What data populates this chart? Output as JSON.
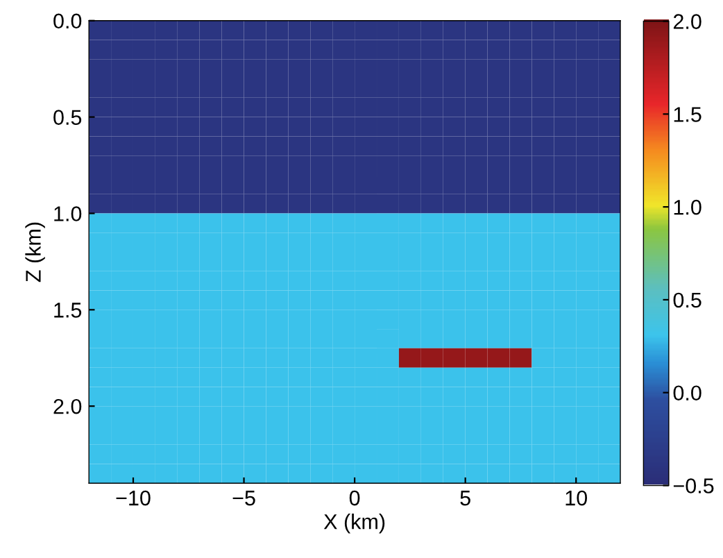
{
  "chart_data": {
    "type": "heatmap",
    "xlabel": "X (km)",
    "ylabel": "Z (km)",
    "xlim": [
      -12,
      12
    ],
    "ylim": [
      2.4,
      0
    ],
    "xticks": [
      {
        "value": -10,
        "label": "−10"
      },
      {
        "value": -5,
        "label": "−5"
      },
      {
        "value": 0,
        "label": "0"
      },
      {
        "value": 5,
        "label": "5"
      },
      {
        "value": 10,
        "label": "10"
      }
    ],
    "yticks": [
      {
        "value": 0,
        "label": "0.0"
      },
      {
        "value": 0.5,
        "label": "0.5"
      },
      {
        "value": 1.0,
        "label": "1.0"
      },
      {
        "value": 1.5,
        "label": "1.5"
      },
      {
        "value": 2.0,
        "label": "2.0"
      }
    ],
    "clim": [
      -0.5,
      2.0
    ],
    "cticks": [
      {
        "value": -0.5,
        "label": "−0.5"
      },
      {
        "value": 0,
        "label": "0.0"
      },
      {
        "value": 0.5,
        "label": "0.5"
      },
      {
        "value": 1.0,
        "label": "1.0"
      },
      {
        "value": 1.5,
        "label": "1.5"
      },
      {
        "value": 2.0,
        "label": "2.0"
      }
    ],
    "cells": [
      [
        -0.4,
        -0.4,
        -0.4,
        -0.4,
        -0.4,
        -0.4,
        -0.4,
        -0.4,
        -0.4,
        -0.4,
        -0.4,
        -0.4,
        -0.4,
        -0.4,
        -0.4,
        -0.4,
        -0.4,
        -0.4,
        -0.4,
        -0.4,
        -0.4,
        -0.4,
        -0.4,
        -0.4
      ],
      [
        -0.4,
        -0.4,
        -0.4,
        -0.4,
        -0.4,
        -0.4,
        -0.4,
        -0.4,
        -0.4,
        -0.4,
        -0.4,
        -0.4,
        -0.4,
        -0.4,
        -0.4,
        -0.4,
        -0.4,
        -0.4,
        -0.4,
        -0.4,
        -0.4,
        -0.4,
        -0.4,
        -0.4
      ],
      [
        -0.4,
        -0.4,
        -0.4,
        -0.4,
        -0.4,
        -0.4,
        -0.4,
        -0.4,
        -0.4,
        -0.4,
        -0.4,
        -0.4,
        -0.4,
        -0.4,
        -0.4,
        -0.4,
        -0.4,
        -0.4,
        -0.4,
        -0.4,
        -0.4,
        -0.4,
        -0.4,
        -0.4
      ],
      [
        -0.4,
        -0.4,
        -0.4,
        -0.4,
        -0.4,
        -0.4,
        -0.4,
        -0.4,
        -0.4,
        -0.4,
        -0.4,
        -0.4,
        -0.4,
        -0.4,
        -0.4,
        -0.4,
        -0.4,
        -0.4,
        -0.4,
        -0.4,
        -0.4,
        -0.4,
        -0.4,
        -0.4
      ],
      [
        -0.4,
        -0.4,
        -0.4,
        -0.4,
        -0.4,
        -0.4,
        -0.4,
        -0.4,
        -0.4,
        -0.4,
        -0.4,
        -0.4,
        -0.4,
        -0.4,
        -0.4,
        -0.4,
        -0.4,
        -0.4,
        -0.4,
        -0.4,
        -0.4,
        -0.4,
        -0.4,
        -0.4
      ],
      [
        -0.4,
        -0.4,
        -0.4,
        -0.4,
        -0.4,
        -0.4,
        -0.4,
        -0.4,
        -0.4,
        -0.4,
        -0.4,
        -0.4,
        -0.4,
        -0.4,
        -0.4,
        -0.4,
        -0.4,
        -0.4,
        -0.4,
        -0.4,
        -0.4,
        -0.4,
        -0.4,
        -0.4
      ],
      [
        -0.4,
        -0.4,
        -0.4,
        -0.4,
        -0.4,
        -0.4,
        -0.4,
        -0.4,
        -0.4,
        -0.4,
        -0.4,
        -0.4,
        -0.4,
        -0.4,
        -0.4,
        -0.4,
        -0.4,
        -0.4,
        -0.4,
        -0.4,
        -0.4,
        -0.4,
        -0.4,
        -0.4
      ],
      [
        -0.4,
        -0.4,
        -0.4,
        -0.4,
        -0.4,
        -0.4,
        -0.4,
        -0.4,
        -0.4,
        -0.4,
        -0.4,
        -0.4,
        -0.4,
        -0.4,
        -0.4,
        -0.4,
        -0.4,
        -0.4,
        -0.4,
        -0.4,
        -0.4,
        -0.4,
        -0.4,
        -0.4
      ],
      [
        -0.4,
        -0.4,
        -0.4,
        -0.4,
        -0.4,
        -0.4,
        -0.4,
        -0.4,
        -0.4,
        -0.4,
        -0.4,
        -0.4,
        -0.4,
        -0.4,
        -0.4,
        -0.4,
        -0.4,
        -0.4,
        -0.4,
        -0.4,
        -0.4,
        -0.4,
        -0.4,
        -0.4
      ],
      [
        -0.4,
        -0.4,
        -0.4,
        -0.4,
        -0.4,
        -0.4,
        -0.4,
        -0.4,
        -0.4,
        -0.4,
        -0.4,
        -0.4,
        -0.4,
        -0.4,
        -0.4,
        -0.4,
        -0.4,
        -0.4,
        -0.4,
        -0.4,
        -0.4,
        -0.4,
        -0.4,
        -0.4
      ],
      [
        0.3,
        0.3,
        0.3,
        0.3,
        0.3,
        0.3,
        0.3,
        0.3,
        0.3,
        0.3,
        0.3,
        0.3,
        0.3,
        0.3,
        0.3,
        0.3,
        0.3,
        0.3,
        0.3,
        0.3,
        0.3,
        0.3,
        0.3,
        0.3
      ],
      [
        0.3,
        0.3,
        0.3,
        0.3,
        0.3,
        0.3,
        0.3,
        0.3,
        0.3,
        0.3,
        0.3,
        0.3,
        0.3,
        0.3,
        0.3,
        0.3,
        0.3,
        0.3,
        0.3,
        0.3,
        0.3,
        0.3,
        0.3,
        0.3
      ],
      [
        0.3,
        0.3,
        0.3,
        0.3,
        0.3,
        0.3,
        0.3,
        0.3,
        0.3,
        0.3,
        0.3,
        0.3,
        0.3,
        0.3,
        0.3,
        0.3,
        0.3,
        0.3,
        0.3,
        0.3,
        0.3,
        0.3,
        0.3,
        0.3
      ],
      [
        0.3,
        0.3,
        0.3,
        0.3,
        0.3,
        0.3,
        0.3,
        0.3,
        0.3,
        0.3,
        0.3,
        0.3,
        0.3,
        0.3,
        0.3,
        0.3,
        0.3,
        0.3,
        0.3,
        0.3,
        0.3,
        0.3,
        0.3,
        0.3
      ],
      [
        0.3,
        0.3,
        0.3,
        0.3,
        0.3,
        0.3,
        0.3,
        0.3,
        0.3,
        0.3,
        0.3,
        0.3,
        0.3,
        0.3,
        0.3,
        0.3,
        0.3,
        0.3,
        0.3,
        0.3,
        0.3,
        0.3,
        0.3,
        0.3
      ],
      [
        0.3,
        0.3,
        0.3,
        0.3,
        0.3,
        0.3,
        0.3,
        0.3,
        0.3,
        0.3,
        0.3,
        0.3,
        0.3,
        0.3,
        0.3,
        0.3,
        0.3,
        0.3,
        0.3,
        0.3,
        0.3,
        0.3,
        0.3,
        0.3
      ],
      [
        0.3,
        0.3,
        0.3,
        0.3,
        0.3,
        0.3,
        0.3,
        0.3,
        0.3,
        0.3,
        0.3,
        0.3,
        0.3,
        0.3,
        0.3,
        0.3,
        0.3,
        0.3,
        0.3,
        0.3,
        0.3,
        0.3,
        0.3,
        0.3
      ],
      [
        0.3,
        0.3,
        0.3,
        0.3,
        0.3,
        0.3,
        0.3,
        0.3,
        0.3,
        0.3,
        0.3,
        0.3,
        0.3,
        0.3,
        1.9,
        1.9,
        1.9,
        1.9,
        1.9,
        1.9,
        0.3,
        0.3,
        0.3,
        0.3
      ],
      [
        0.3,
        0.3,
        0.3,
        0.3,
        0.3,
        0.3,
        0.3,
        0.3,
        0.3,
        0.3,
        0.3,
        0.3,
        0.3,
        0.3,
        0.3,
        0.3,
        0.3,
        0.3,
        0.3,
        0.3,
        0.3,
        0.3,
        0.3,
        0.3
      ],
      [
        0.3,
        0.3,
        0.3,
        0.3,
        0.3,
        0.3,
        0.3,
        0.3,
        0.3,
        0.3,
        0.3,
        0.3,
        0.3,
        0.3,
        0.3,
        0.3,
        0.3,
        0.3,
        0.3,
        0.3,
        0.3,
        0.3,
        0.3,
        0.3
      ],
      [
        0.3,
        0.3,
        0.3,
        0.3,
        0.3,
        0.3,
        0.3,
        0.3,
        0.3,
        0.3,
        0.3,
        0.3,
        0.3,
        0.3,
        0.3,
        0.3,
        0.3,
        0.3,
        0.3,
        0.3,
        0.3,
        0.3,
        0.3,
        0.3
      ],
      [
        0.3,
        0.3,
        0.3,
        0.3,
        0.3,
        0.3,
        0.3,
        0.3,
        0.3,
        0.3,
        0.3,
        0.3,
        0.3,
        0.3,
        0.3,
        0.3,
        0.3,
        0.3,
        0.3,
        0.3,
        0.3,
        0.3,
        0.3,
        0.3
      ],
      [
        0.3,
        0.3,
        0.3,
        0.3,
        0.3,
        0.3,
        0.3,
        0.3,
        0.3,
        0.3,
        0.3,
        0.3,
        0.3,
        0.3,
        0.3,
        0.3,
        0.3,
        0.3,
        0.3,
        0.3,
        0.3,
        0.3,
        0.3,
        0.3
      ],
      [
        0.3,
        0.3,
        0.3,
        0.3,
        0.3,
        0.3,
        0.3,
        0.3,
        0.3,
        0.3,
        0.3,
        0.3,
        0.3,
        0.3,
        0.3,
        0.3,
        0.3,
        0.3,
        0.3,
        0.3,
        0.3,
        0.3,
        0.3,
        0.3
      ]
    ]
  }
}
